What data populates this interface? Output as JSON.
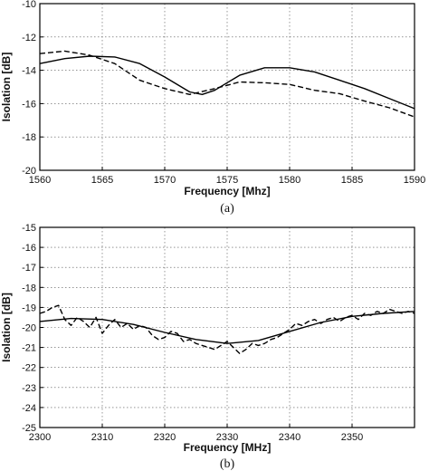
{
  "chart_data": [
    {
      "type": "line",
      "caption": "(a)",
      "xlabel": "Frequency [Mhz]",
      "ylabel": "Isolation [dB]",
      "xlim": [
        1560,
        1590
      ],
      "ylim": [
        -20,
        -10
      ],
      "xticks": [
        1560,
        1565,
        1570,
        1575,
        1580,
        1585,
        1590
      ],
      "yticks": [
        -10,
        -12,
        -14,
        -16,
        -18,
        -20
      ],
      "ytick_labels": [
        "-10",
        "-12",
        "-14",
        "-16",
        "-18",
        "-20"
      ],
      "grid": true,
      "series": [
        {
          "style": "solid",
          "x": [
            1560,
            1562,
            1564,
            1566,
            1568,
            1570,
            1572,
            1573,
            1574,
            1576,
            1578,
            1580,
            1582,
            1584,
            1586,
            1588,
            1590
          ],
          "y": [
            -13.6,
            -13.3,
            -13.15,
            -13.2,
            -13.6,
            -14.4,
            -15.3,
            -15.45,
            -15.2,
            -14.3,
            -13.85,
            -13.85,
            -14.1,
            -14.6,
            -15.1,
            -15.7,
            -16.3
          ]
        },
        {
          "style": "dashed",
          "x": [
            1560,
            1562,
            1564,
            1566,
            1568,
            1570,
            1572,
            1574,
            1576,
            1578,
            1580,
            1582,
            1584,
            1586,
            1588,
            1590
          ],
          "y": [
            -13.0,
            -12.85,
            -13.1,
            -13.6,
            -14.6,
            -15.1,
            -15.45,
            -15.1,
            -14.7,
            -14.75,
            -14.85,
            -15.2,
            -15.4,
            -15.85,
            -16.25,
            -16.8
          ]
        }
      ]
    },
    {
      "type": "line",
      "caption": "(b)",
      "xlabel": "Frequency [MHz]",
      "ylabel": "Isolation [dB]",
      "xlim": [
        2300,
        2360
      ],
      "ylim": [
        -25,
        -15
      ],
      "xticks": [
        2300,
        2310,
        2320,
        2330,
        2340,
        2350
      ],
      "yticks": [
        -15,
        -16,
        -17,
        -18,
        -19,
        -20,
        -21,
        -22,
        -23,
        -24,
        -25
      ],
      "ytick_labels": [
        "-15",
        "-16",
        "-17",
        "-18",
        "-19",
        "-20",
        "-21",
        "-22",
        "-23",
        "-24",
        "-25"
      ],
      "grid": true,
      "series": [
        {
          "style": "solid",
          "x": [
            2300,
            2305,
            2310,
            2315,
            2320,
            2325,
            2330,
            2335,
            2340,
            2345,
            2350,
            2355,
            2360
          ],
          "y": [
            -19.7,
            -19.55,
            -19.6,
            -19.85,
            -20.25,
            -20.6,
            -20.8,
            -20.65,
            -20.2,
            -19.75,
            -19.45,
            -19.3,
            -19.2
          ]
        },
        {
          "style": "dashed",
          "x": [
            2300,
            2301,
            2302,
            2303,
            2304,
            2305,
            2306,
            2307,
            2308,
            2309,
            2310,
            2311,
            2312,
            2313,
            2314,
            2315,
            2316,
            2317,
            2318,
            2319,
            2320,
            2321,
            2322,
            2323,
            2324,
            2325,
            2326,
            2327,
            2328,
            2329,
            2330,
            2331,
            2332,
            2333,
            2334,
            2335,
            2336,
            2337,
            2338,
            2339,
            2340,
            2341,
            2342,
            2343,
            2344,
            2345,
            2346,
            2347,
            2348,
            2349,
            2350,
            2351,
            2352,
            2353,
            2354,
            2355,
            2356,
            2357,
            2358,
            2359,
            2360
          ],
          "y": [
            -19.3,
            -19.2,
            -19.0,
            -18.9,
            -19.6,
            -19.9,
            -19.5,
            -19.7,
            -20.0,
            -19.5,
            -20.3,
            -19.9,
            -19.6,
            -20.0,
            -19.8,
            -20.1,
            -19.9,
            -20.0,
            -20.4,
            -20.6,
            -20.5,
            -20.2,
            -20.3,
            -20.7,
            -20.6,
            -20.8,
            -20.9,
            -21.0,
            -21.1,
            -20.9,
            -20.7,
            -21.0,
            -21.3,
            -21.1,
            -20.8,
            -20.9,
            -20.8,
            -20.6,
            -20.5,
            -20.3,
            -20.1,
            -19.8,
            -19.9,
            -19.7,
            -19.6,
            -19.8,
            -19.6,
            -19.5,
            -19.7,
            -19.5,
            -19.4,
            -19.6,
            -19.3,
            -19.4,
            -19.2,
            -19.3,
            -19.1,
            -19.2,
            -19.3,
            -19.2,
            -19.3
          ]
        }
      ]
    }
  ]
}
